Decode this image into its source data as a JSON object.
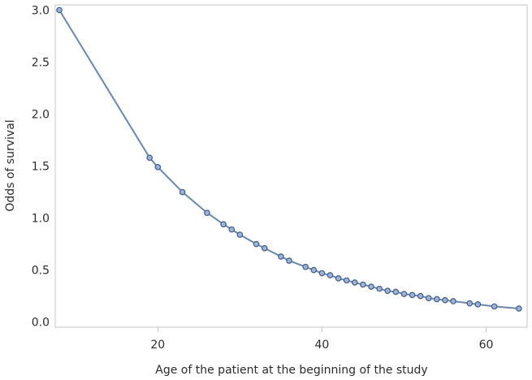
{
  "chart_data": {
    "type": "line",
    "title": "",
    "xlabel": "Age of the patient at the beginning of the study",
    "ylabel": "Odds of survival",
    "xlim": [
      7.5,
      65
    ],
    "ylim": [
      -0.05,
      3.05
    ],
    "x_ticks": [
      20,
      40,
      60
    ],
    "y_ticks": [
      0.0,
      0.5,
      1.0,
      1.5,
      2.0,
      2.5,
      3.0
    ],
    "x_tick_labels": [
      "20",
      "40",
      "60"
    ],
    "y_tick_labels": [
      "0.0",
      "0.5",
      "1.0",
      "1.5",
      "2.0",
      "2.5",
      "3.0"
    ],
    "grid": false,
    "legend": "none",
    "marker": "circle",
    "line_color": "#6a87ad",
    "marker_fill": "#9fb4d4",
    "marker_edge": "#3e5c8a",
    "series": [
      {
        "x": [
          8,
          19,
          20,
          23,
          26,
          28,
          29,
          30,
          32,
          33,
          35,
          36,
          38,
          39,
          40,
          41,
          42,
          43,
          44,
          45,
          46,
          47,
          48,
          49,
          50,
          51,
          52,
          53,
          54,
          55,
          56,
          58,
          59,
          61,
          64
        ],
        "y": [
          3.0,
          1.58,
          1.49,
          1.25,
          1.05,
          0.94,
          0.89,
          0.84,
          0.75,
          0.71,
          0.63,
          0.59,
          0.53,
          0.5,
          0.47,
          0.45,
          0.42,
          0.4,
          0.38,
          0.36,
          0.34,
          0.32,
          0.3,
          0.29,
          0.27,
          0.26,
          0.25,
          0.23,
          0.22,
          0.21,
          0.2,
          0.18,
          0.17,
          0.15,
          0.13
        ]
      }
    ]
  }
}
